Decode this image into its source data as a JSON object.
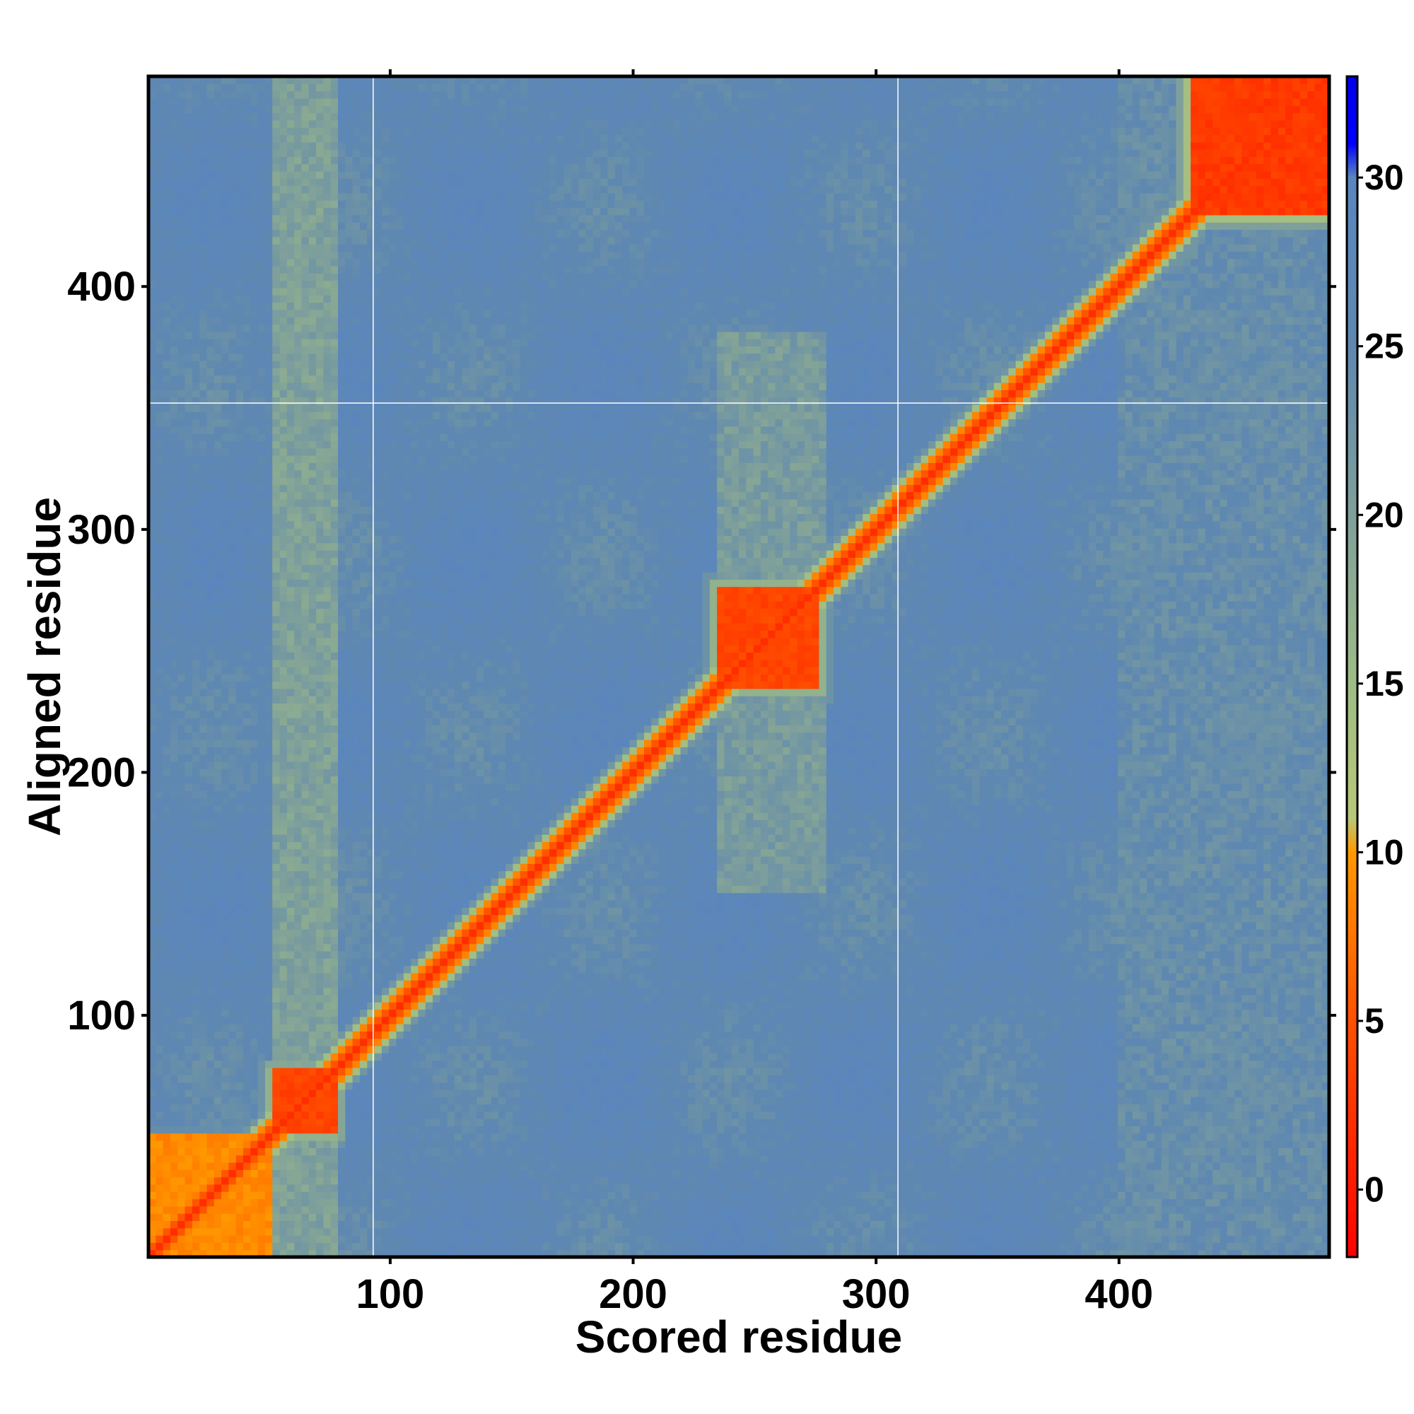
{
  "chart_data": {
    "type": "heatmap",
    "title": "",
    "xlabel": "Scored residue",
    "ylabel": "Aligned residue",
    "x_range": [
      1,
      486
    ],
    "y_range": [
      1,
      486
    ],
    "x_ticks": [
      100,
      200,
      300,
      400
    ],
    "y_ticks": [
      100,
      200,
      300,
      400
    ],
    "grid": true,
    "gridlines": {
      "x": [
        93,
        309
      ],
      "y": [
        352
      ]
    },
    "colorbar": {
      "range": [
        -2,
        33
      ],
      "ticks": [
        0,
        5,
        10,
        15,
        20,
        25,
        30
      ],
      "position": "right",
      "stops": [
        {
          "value": -2,
          "color": "#ff0000"
        },
        {
          "value": 5,
          "color": "#ff5000"
        },
        {
          "value": 10,
          "color": "#ff9900"
        },
        {
          "value": 11,
          "color": "#b8c878"
        },
        {
          "value": 15,
          "color": "#9ebc85"
        },
        {
          "value": 20,
          "color": "#7fa09a"
        },
        {
          "value": 25,
          "color": "#5f88b0"
        },
        {
          "value": 30,
          "color": "#5a86c0"
        },
        {
          "value": 31,
          "color": "#0000ff"
        },
        {
          "value": 33,
          "color": "#0000ee"
        }
      ]
    },
    "background_value": 26,
    "diagonal_band": {
      "halfwidth": 8,
      "value": 2
    },
    "domains": [
      {
        "start": 1,
        "end": 50,
        "value": 8
      },
      {
        "start": 52,
        "end": 77,
        "value": 3
      },
      {
        "start": 235,
        "end": 276,
        "value": 3
      },
      {
        "start": 429,
        "end": 486,
        "value": 2
      }
    ],
    "moderate_regions": [
      {
        "x": [
          52,
          78
        ],
        "y": [
          1,
          486
        ],
        "value": 20
      },
      {
        "x": [
          236,
          280
        ],
        "y": [
          150,
          380
        ],
        "value": 21
      },
      {
        "x": [
          400,
          486
        ],
        "y": [
          1,
          486
        ],
        "value": 24
      }
    ]
  }
}
